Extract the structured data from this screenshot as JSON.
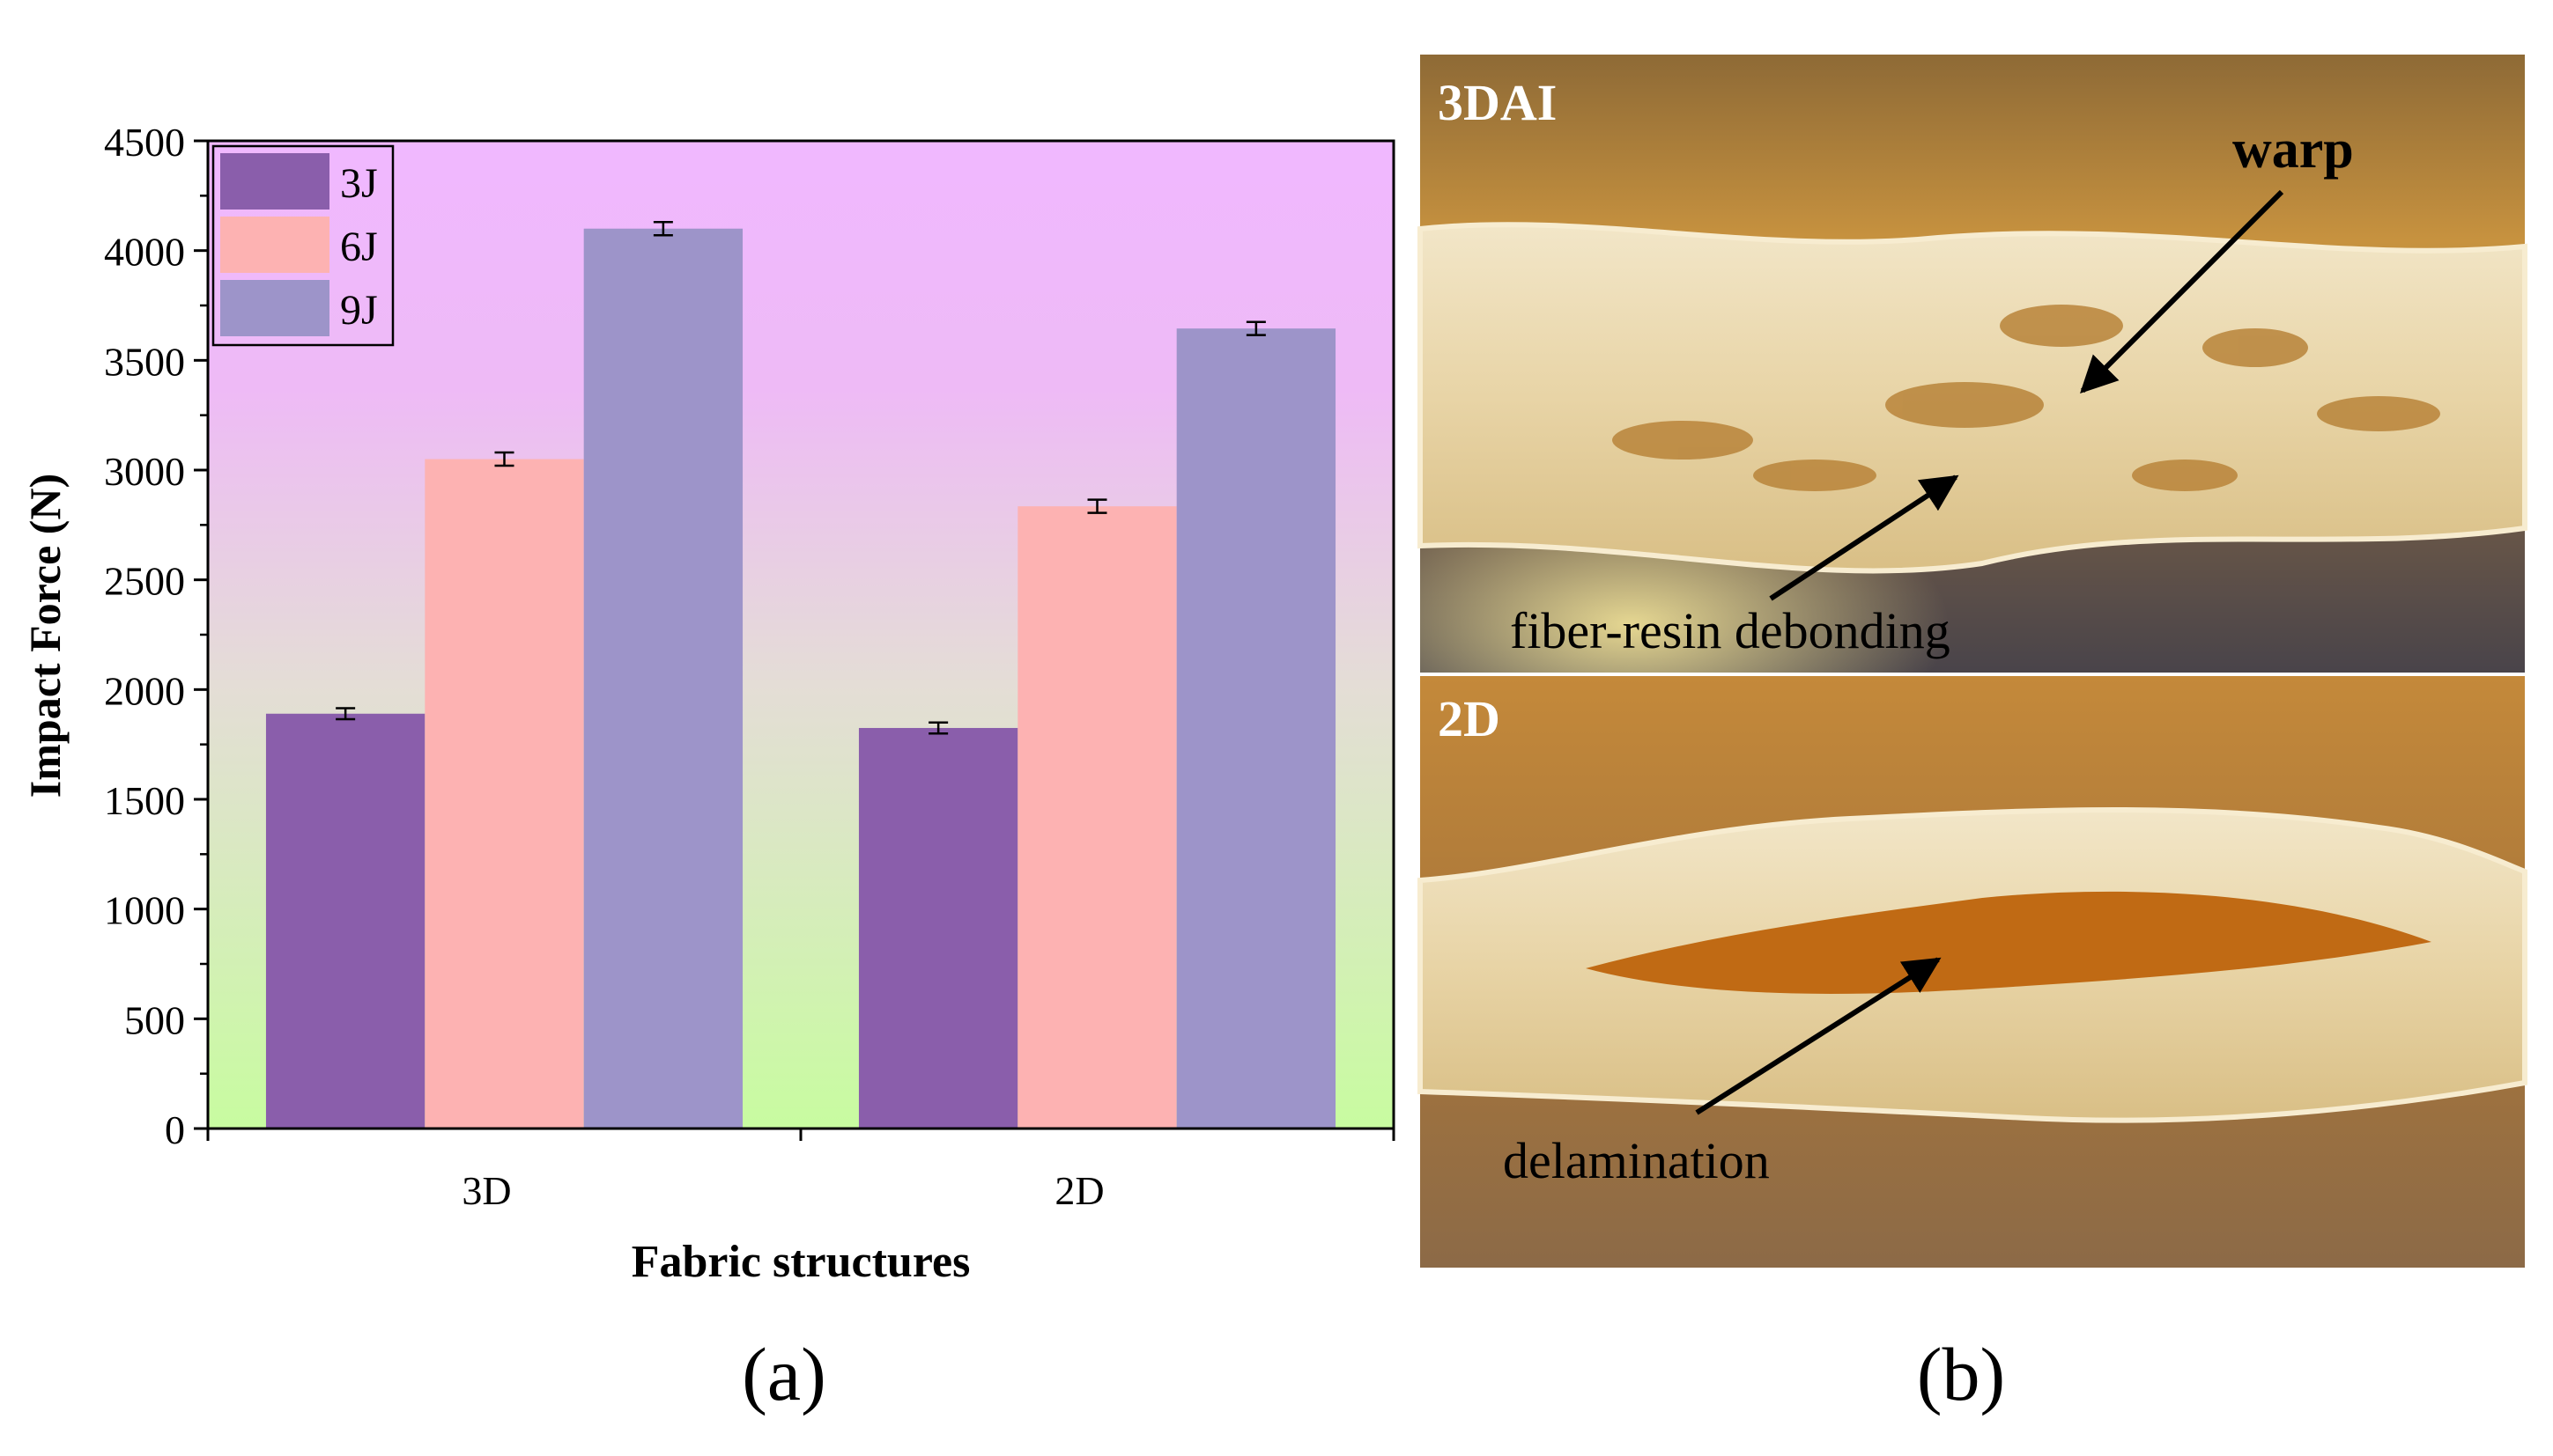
{
  "chart_data": {
    "type": "bar",
    "title": "",
    "xlabel": "Fabric structures",
    "ylabel": "Impact Force (N)",
    "categories": [
      "3D",
      "2D"
    ],
    "series": [
      {
        "name": "3J",
        "values": [
          1890,
          1825
        ],
        "errors": [
          25,
          25
        ],
        "color": "#8a5eab"
      },
      {
        "name": "6J",
        "values": [
          3050,
          2835
        ],
        "errors": [
          30,
          30
        ],
        "color": "#fdb2b2"
      },
      {
        "name": "9J",
        "values": [
          4100,
          3645
        ],
        "errors": [
          30,
          30
        ],
        "color": "#9d94c9"
      }
    ],
    "ylim": [
      0,
      4500
    ],
    "yticks": [
      0,
      500,
      1000,
      1500,
      2000,
      2500,
      3000,
      3500,
      4000,
      4500
    ],
    "legend_position": "top-left",
    "background_gradient": [
      "#f0b8ff",
      "#c8fca0"
    ],
    "grid": false
  },
  "panels": {
    "a_label": "(a)",
    "b_label": "(b)"
  },
  "photos": {
    "top": {
      "label": "3DAI",
      "annotations": {
        "warp": "warp",
        "debond": "fiber-resin debonding"
      }
    },
    "bottom": {
      "label": "2D",
      "annotations": {
        "delam": "delamination"
      }
    }
  }
}
